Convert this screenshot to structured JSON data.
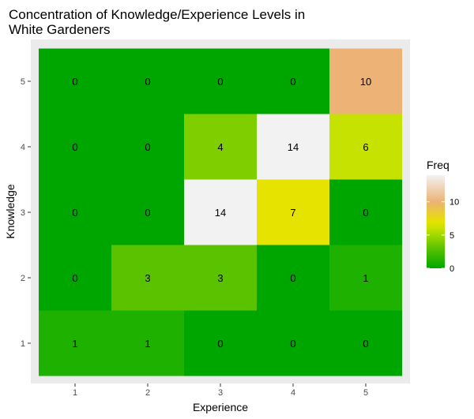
{
  "chart_data": {
    "type": "heatmap",
    "title_lines": [
      "Concentration of Knowledge/Experience Levels in",
      "White Gardeners"
    ],
    "xlabel": "Experience",
    "ylabel": "Knowledge",
    "x_categories": [
      "1",
      "2",
      "3",
      "4",
      "5"
    ],
    "y_categories": [
      "1",
      "2",
      "3",
      "4",
      "5"
    ],
    "cells": [
      {
        "x": "1",
        "y": "5",
        "value": 0
      },
      {
        "x": "2",
        "y": "5",
        "value": 0
      },
      {
        "x": "3",
        "y": "5",
        "value": 0
      },
      {
        "x": "4",
        "y": "5",
        "value": 0
      },
      {
        "x": "5",
        "y": "5",
        "value": 10
      },
      {
        "x": "1",
        "y": "4",
        "value": 0
      },
      {
        "x": "2",
        "y": "4",
        "value": 0
      },
      {
        "x": "3",
        "y": "4",
        "value": 4
      },
      {
        "x": "4",
        "y": "4",
        "value": 14
      },
      {
        "x": "5",
        "y": "4",
        "value": 6
      },
      {
        "x": "1",
        "y": "3",
        "value": 0
      },
      {
        "x": "2",
        "y": "3",
        "value": 0
      },
      {
        "x": "3",
        "y": "3",
        "value": 14
      },
      {
        "x": "4",
        "y": "3",
        "value": 7
      },
      {
        "x": "5",
        "y": "3",
        "value": 0
      },
      {
        "x": "1",
        "y": "2",
        "value": 0
      },
      {
        "x": "2",
        "y": "2",
        "value": 3
      },
      {
        "x": "3",
        "y": "2",
        "value": 3
      },
      {
        "x": "4",
        "y": "2",
        "value": 0
      },
      {
        "x": "5",
        "y": "2",
        "value": 1
      },
      {
        "x": "1",
        "y": "1",
        "value": 1
      },
      {
        "x": "2",
        "y": "1",
        "value": 1
      },
      {
        "x": "3",
        "y": "1",
        "value": 0
      },
      {
        "x": "4",
        "y": "1",
        "value": 0
      },
      {
        "x": "5",
        "y": "1",
        "value": 0
      }
    ],
    "legend": {
      "title": "Freq",
      "placement": "right",
      "ticks": [
        0,
        5,
        10
      ],
      "range": [
        0,
        14
      ]
    },
    "color_scale": {
      "stops": [
        {
          "value": 0,
          "color": "#00a600"
        },
        {
          "value": 1,
          "color": "#1eb100"
        },
        {
          "value": 3,
          "color": "#5bc200"
        },
        {
          "value": 4,
          "color": "#7ece00"
        },
        {
          "value": 6,
          "color": "#c6e200"
        },
        {
          "value": 7,
          "color": "#e6e300"
        },
        {
          "value": 10,
          "color": "#ecb276"
        },
        {
          "value": 14,
          "color": "#f2f2f2"
        }
      ]
    },
    "panel_background": "#ebebeb",
    "grid": true
  }
}
